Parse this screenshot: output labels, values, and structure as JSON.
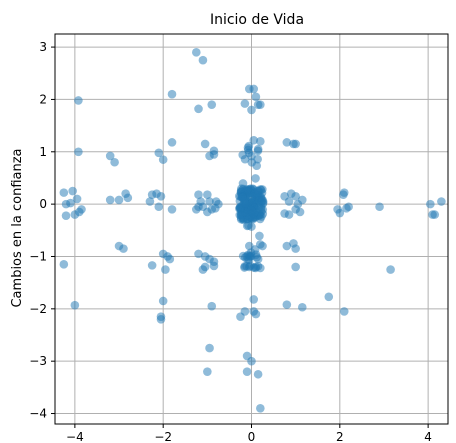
{
  "chart_data": {
    "type": "scatter",
    "title": "Inicio de Vida",
    "xlabel": "",
    "ylabel": "Cambios en la confianza",
    "xlim": [
      -4.45,
      4.45
    ],
    "ylim": [
      -4.2,
      3.25
    ],
    "xticks": [
      -4,
      -2,
      0,
      2,
      4
    ],
    "yticks": [
      -4,
      -3,
      -2,
      -1,
      0,
      1,
      2,
      3
    ],
    "grid": true,
    "marker_color": "#1f77b4",
    "marker_alpha": 0.5,
    "points": [
      [
        -4.25,
        0.22
      ],
      [
        -4.2,
        0.0
      ],
      [
        -4.05,
        0.25
      ],
      [
        -4.1,
        0.02
      ],
      [
        -3.95,
        0.1
      ],
      [
        -3.9,
        -0.15
      ],
      [
        -4.0,
        -0.2
      ],
      [
        -3.85,
        -0.1
      ],
      [
        -4.2,
        -0.22
      ],
      [
        -4.25,
        -1.15
      ],
      [
        -4.0,
        -1.93
      ],
      [
        -3.92,
        1.98
      ],
      [
        -3.92,
        1.0
      ],
      [
        -3.2,
        0.92
      ],
      [
        -3.1,
        0.8
      ],
      [
        -3.2,
        0.08
      ],
      [
        -3.0,
        0.08
      ],
      [
        -2.85,
        0.2
      ],
      [
        -2.8,
        0.12
      ],
      [
        -3.0,
        -0.8
      ],
      [
        -2.9,
        -0.85
      ],
      [
        -2.25,
        0.18
      ],
      [
        -2.3,
        0.05
      ],
      [
        -2.15,
        0.2
      ],
      [
        -2.05,
        0.15
      ],
      [
        -2.1,
        -0.05
      ],
      [
        -2.0,
        0.85
      ],
      [
        -2.1,
        0.98
      ],
      [
        -1.8,
        1.18
      ],
      [
        -1.8,
        2.1
      ],
      [
        -1.8,
        -0.1
      ],
      [
        -2.0,
        -0.95
      ],
      [
        -1.9,
        -1.0
      ],
      [
        -1.85,
        -1.05
      ],
      [
        -2.25,
        -1.17
      ],
      [
        -1.95,
        -1.25
      ],
      [
        -2.0,
        -1.85
      ],
      [
        -2.05,
        -2.15
      ],
      [
        -2.05,
        -2.2
      ],
      [
        -1.25,
        2.9
      ],
      [
        -1.1,
        2.75
      ],
      [
        -1.2,
        1.82
      ],
      [
        -0.9,
        1.9
      ],
      [
        -1.05,
        1.15
      ],
      [
        -0.85,
        1.02
      ],
      [
        -0.85,
        0.95
      ],
      [
        -0.95,
        0.92
      ],
      [
        -1.2,
        0.18
      ],
      [
        -1.0,
        0.18
      ],
      [
        -1.15,
        0.05
      ],
      [
        -0.95,
        0.05
      ],
      [
        -0.8,
        0.05
      ],
      [
        -0.75,
        0.0
      ],
      [
        -1.1,
        -0.05
      ],
      [
        -0.9,
        -0.1
      ],
      [
        -1.0,
        -0.15
      ],
      [
        -1.2,
        -0.05
      ],
      [
        -1.25,
        -0.1
      ],
      [
        -0.82,
        -0.08
      ],
      [
        -1.2,
        -0.95
      ],
      [
        -1.05,
        -1.0
      ],
      [
        -0.95,
        -1.05
      ],
      [
        -0.85,
        -1.1
      ],
      [
        -0.85,
        -1.18
      ],
      [
        -1.05,
        -1.2
      ],
      [
        -1.1,
        -1.25
      ],
      [
        -0.9,
        -1.95
      ],
      [
        -0.95,
        -2.75
      ],
      [
        -1.0,
        -3.2
      ],
      [
        -0.25,
        -2.15
      ],
      [
        -0.15,
        -2.05
      ],
      [
        0.05,
        -2.05
      ],
      [
        0.1,
        -2.1
      ],
      [
        0.05,
        -1.82
      ],
      [
        -0.1,
        -2.9
      ],
      [
        0.0,
        -3.0
      ],
      [
        -0.1,
        -3.2
      ],
      [
        0.15,
        -3.25
      ],
      [
        0.2,
        -3.9
      ],
      [
        0.2,
        -1.22
      ],
      [
        0.25,
        -0.8
      ],
      [
        0.15,
        -1.05
      ],
      [
        0.1,
        -1.2
      ],
      [
        -0.05,
        -1.2
      ],
      [
        -0.05,
        -0.8
      ],
      [
        -0.05,
        2.2
      ],
      [
        0.05,
        2.2
      ],
      [
        0.1,
        2.05
      ],
      [
        0.15,
        1.9
      ],
      [
        0.2,
        1.9
      ],
      [
        -0.15,
        1.92
      ],
      [
        0.0,
        1.8
      ],
      [
        0.05,
        1.22
      ],
      [
        0.2,
        1.2
      ],
      [
        0.15,
        1.05
      ],
      [
        0.8,
        1.18
      ],
      [
        1.0,
        1.15
      ],
      [
        0.95,
        1.15
      ],
      [
        0.75,
        0.15
      ],
      [
        0.9,
        0.2
      ],
      [
        1.0,
        0.15
      ],
      [
        1.05,
        0.0
      ],
      [
        1.15,
        0.08
      ],
      [
        0.85,
        0.05
      ],
      [
        0.75,
        -0.18
      ],
      [
        0.85,
        -0.2
      ],
      [
        1.0,
        -0.1
      ],
      [
        1.1,
        -0.15
      ],
      [
        0.8,
        -0.8
      ],
      [
        0.95,
        -0.75
      ],
      [
        1.0,
        -0.85
      ],
      [
        1.0,
        -1.2
      ],
      [
        0.8,
        -1.92
      ],
      [
        1.15,
        -1.97
      ],
      [
        1.75,
        -1.77
      ],
      [
        2.1,
        -2.05
      ],
      [
        1.95,
        -0.1
      ],
      [
        2.0,
        -0.17
      ],
      [
        2.1,
        0.22
      ],
      [
        2.08,
        0.18
      ],
      [
        2.2,
        -0.05
      ],
      [
        2.15,
        -0.08
      ],
      [
        2.9,
        -0.05
      ],
      [
        3.15,
        -1.25
      ],
      [
        4.1,
        -0.2
      ],
      [
        4.05,
        0.0
      ],
      [
        4.15,
        -0.2
      ],
      [
        4.3,
        0.05
      ]
    ],
    "cluster_center": [
      0.0,
      0.0
    ],
    "cluster_half_width": 0.28,
    "cluster_half_height": 0.3,
    "dense_columns": [
      {
        "x": 0.0,
        "ymin": -1.22,
        "ymax": 1.25
      }
    ]
  }
}
